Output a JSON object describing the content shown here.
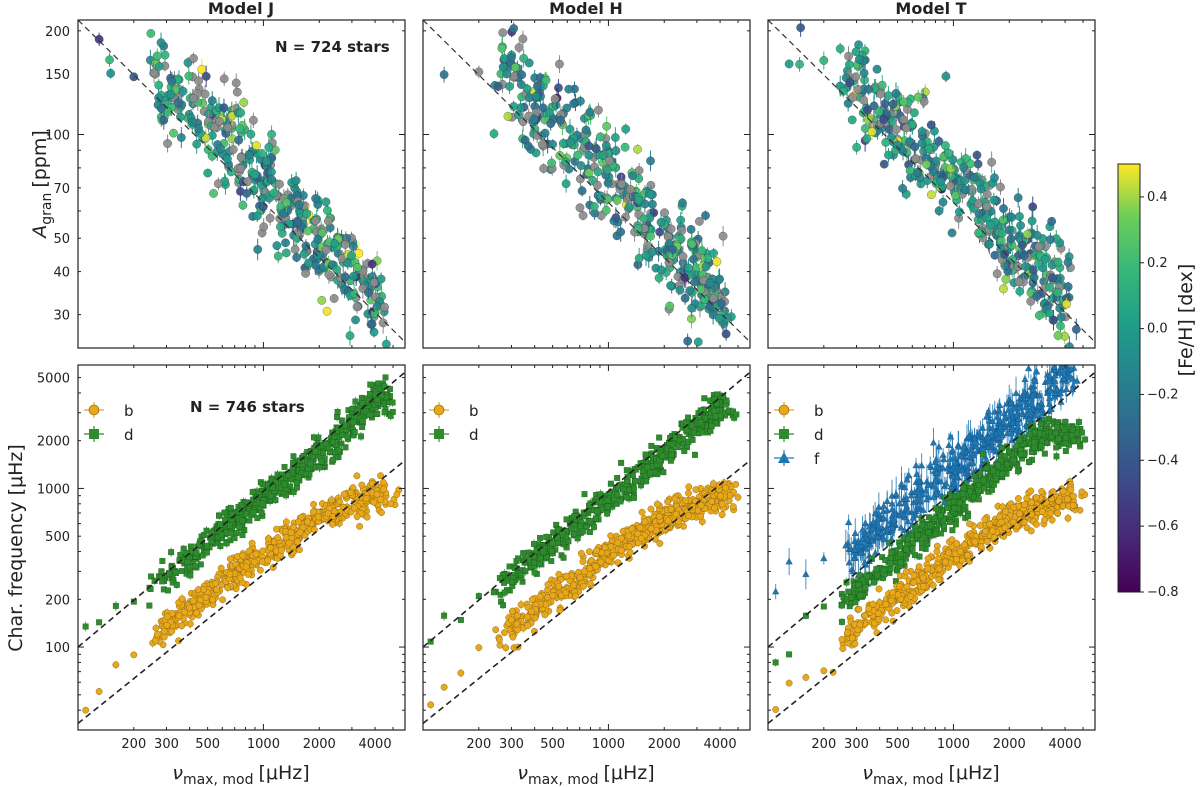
{
  "chart_data": [
    {
      "type": "scatter",
      "panel": "top-left",
      "title": "Model J",
      "xlabel": "",
      "ylabel": "A_gran [ppm]",
      "xscale": "log",
      "yscale": "log",
      "xlim": [
        100,
        5800
      ],
      "ylim": [
        24,
        215
      ],
      "yticks": [
        30,
        40,
        50,
        70,
        100,
        150,
        200
      ],
      "annotation": "N = 724 stars",
      "fit_line": {
        "x": [
          100,
          5800
        ],
        "y": [
          215,
          25
        ],
        "style": "dashed"
      },
      "colorbar": {
        "label": "[Fe/H] [dex]",
        "range": [
          -0.8,
          0.5
        ],
        "ticks": [
          -0.8,
          -0.6,
          -0.4,
          -0.2,
          0.0,
          0.2,
          0.4
        ],
        "colormap": "viridis",
        "missing_color": "#8c8c8c"
      },
      "series": [
        {
          "name": "stars",
          "note": "724 stars colored by [Fe/H]; grey = no metallicity",
          "points": [
            [
              130,
              178
            ],
            [
              148,
              170
            ],
            [
              200,
              146
            ],
            [
              260,
              150
            ],
            [
              300,
              140
            ],
            [
              350,
              128
            ],
            [
              400,
              118
            ],
            [
              500,
              108
            ],
            [
              600,
              98
            ],
            [
              700,
              92
            ],
            [
              800,
              85
            ],
            [
              900,
              80
            ],
            [
              1000,
              74
            ],
            [
              1200,
              68
            ],
            [
              1400,
              62
            ],
            [
              1600,
              57
            ],
            [
              1800,
              52
            ],
            [
              2000,
              48
            ],
            [
              2400,
              45
            ],
            [
              3000,
              40
            ],
            [
              3500,
              36
            ],
            [
              4000,
              33
            ],
            [
              4600,
              29
            ]
          ]
        }
      ]
    },
    {
      "type": "scatter",
      "panel": "top-middle",
      "title": "Model H",
      "xlabel": "",
      "ylabel": "",
      "xscale": "log",
      "yscale": "log",
      "xlim": [
        100,
        5800
      ],
      "ylim": [
        24,
        215
      ],
      "fit_line": {
        "x": [
          100,
          5800
        ],
        "y": [
          215,
          25
        ],
        "style": "dashed"
      },
      "series": [
        {
          "name": "stars",
          "points": [
            [
              130,
              178
            ],
            [
              200,
              160
            ],
            [
              300,
              140
            ],
            [
              500,
              108
            ],
            [
              800,
              85
            ],
            [
              1000,
              74
            ],
            [
              1400,
              62
            ],
            [
              2000,
              48
            ],
            [
              3000,
              40
            ],
            [
              4000,
              31
            ]
          ]
        }
      ]
    },
    {
      "type": "scatter",
      "panel": "top-right",
      "title": "Model T",
      "xlabel": "",
      "ylabel": "",
      "xscale": "log",
      "yscale": "log",
      "xlim": [
        100,
        5800
      ],
      "ylim": [
        24,
        215
      ],
      "fit_line": {
        "x": [
          100,
          5800
        ],
        "y": [
          215,
          25
        ],
        "style": "dashed"
      },
      "series": [
        {
          "name": "stars",
          "points": [
            [
              130,
              178
            ],
            [
              300,
              150
            ],
            [
              500,
              110
            ],
            [
              800,
              88
            ],
            [
              1000,
              76
            ],
            [
              1400,
              62
            ],
            [
              2000,
              50
            ],
            [
              3000,
              40
            ],
            [
              4000,
              32
            ]
          ]
        }
      ]
    },
    {
      "type": "scatter",
      "panel": "bottom-left",
      "xlabel": "ν_max, mod [μHz]",
      "ylabel": "Char. frequency [μHz]",
      "xscale": "log",
      "yscale": "log",
      "xlim": [
        100,
        5800
      ],
      "ylim": [
        30,
        6000
      ],
      "xticks": [
        200,
        300,
        500,
        1000,
        2000,
        4000
      ],
      "yticks": [
        100,
        200,
        500,
        1000,
        2000,
        5000
      ],
      "annotation": "N = 746 stars",
      "legend": [
        "b",
        "d"
      ],
      "series": [
        {
          "name": "b",
          "color": "#e8a81a",
          "marker": "circle",
          "points": [
            [
              110,
              45
            ],
            [
              160,
              75
            ],
            [
              250,
              115
            ],
            [
              300,
              135
            ],
            [
              400,
              175
            ],
            [
              500,
              215
            ],
            [
              700,
              290
            ],
            [
              1000,
              380
            ],
            [
              1500,
              520
            ],
            [
              2000,
              640
            ],
            [
              3000,
              820
            ],
            [
              4000,
              900
            ]
          ]
        },
        {
          "name": "d",
          "color": "#2e8b2e",
          "marker": "square",
          "points": [
            [
              110,
              130
            ],
            [
              150,
              140
            ],
            [
              250,
              250
            ],
            [
              300,
              285
            ],
            [
              400,
              370
            ],
            [
              500,
              460
            ],
            [
              700,
              620
            ],
            [
              1000,
              860
            ],
            [
              1500,
              1250
            ],
            [
              2000,
              1650
            ],
            [
              3000,
              2600
            ],
            [
              4000,
              3600
            ]
          ]
        }
      ],
      "fit_lines": [
        {
          "x": [
            100,
            5800
          ],
          "y": [
            100,
            5400
          ]
        },
        {
          "x": [
            100,
            5800
          ],
          "y": [
            33,
            1500
          ]
        }
      ]
    },
    {
      "type": "scatter",
      "panel": "bottom-middle",
      "xlabel": "ν_max, mod [μHz]",
      "ylabel": "",
      "xscale": "log",
      "yscale": "log",
      "xlim": [
        100,
        5800
      ],
      "ylim": [
        30,
        6000
      ],
      "xticks": [
        200,
        300,
        500,
        1000,
        2000,
        4000
      ],
      "legend": [
        "b",
        "d"
      ],
      "series": [
        {
          "name": "b",
          "color": "#e8a81a",
          "marker": "circle",
          "points": [
            [
              110,
              45
            ],
            [
              300,
              130
            ],
            [
              500,
              210
            ],
            [
              1000,
              380
            ],
            [
              2000,
              650
            ],
            [
              4000,
              900
            ]
          ]
        },
        {
          "name": "d",
          "color": "#2e8b2e",
          "marker": "square",
          "points": [
            [
              110,
              125
            ],
            [
              300,
              270
            ],
            [
              500,
              440
            ],
            [
              1000,
              840
            ],
            [
              2000,
              1650
            ],
            [
              4000,
              3300
            ]
          ]
        }
      ],
      "fit_lines": [
        {
          "x": [
            100,
            5800
          ],
          "y": [
            100,
            5400
          ]
        },
        {
          "x": [
            100,
            5800
          ],
          "y": [
            33,
            1500
          ]
        }
      ]
    },
    {
      "type": "scatter",
      "panel": "bottom-right",
      "xlabel": "ν_max, mod [μHz]",
      "ylabel": "",
      "xscale": "log",
      "yscale": "log",
      "xlim": [
        100,
        5800
      ],
      "ylim": [
        30,
        6000
      ],
      "xticks": [
        200,
        300,
        500,
        1000,
        2000,
        4000
      ],
      "legend": [
        "b",
        "d",
        "f"
      ],
      "series": [
        {
          "name": "b",
          "color": "#e8a81a",
          "marker": "circle",
          "points": [
            [
              110,
              45
            ],
            [
              300,
              130
            ],
            [
              500,
              210
            ],
            [
              1000,
              380
            ],
            [
              2000,
              650
            ],
            [
              4000,
              850
            ]
          ]
        },
        {
          "name": "d",
          "color": "#2e8b2e",
          "marker": "square",
          "points": [
            [
              110,
              95
            ],
            [
              300,
              220
            ],
            [
              500,
              380
            ],
            [
              1000,
              750
            ],
            [
              2000,
              1450
            ],
            [
              3000,
              2200
            ]
          ]
        },
        {
          "name": "f",
          "color": "#1f77b4",
          "marker": "triangle",
          "points": [
            [
              110,
              230
            ],
            [
              300,
              400
            ],
            [
              500,
              700
            ],
            [
              1000,
              1300
            ],
            [
              2000,
              2600
            ],
            [
              4000,
              5500
            ]
          ]
        }
      ],
      "fit_lines": [
        {
          "x": [
            100,
            5800
          ],
          "y": [
            100,
            5400
          ]
        },
        {
          "x": [
            100,
            5800
          ],
          "y": [
            33,
            1500
          ]
        }
      ]
    }
  ],
  "labels": {
    "titles": [
      "Model J",
      "Model H",
      "Model T"
    ],
    "ylabel_top": "A",
    "ylabel_top_sub": "gran",
    "ylabel_top_unit": "[ppm]",
    "ylabel_bottom": "Char. frequency [μHz]",
    "xlabel_main": "ν",
    "xlabel_sub": "max, mod",
    "xlabel_unit": "[μHz]",
    "annotation_top": "N = 724 stars",
    "annotation_bottom": "N = 746 stars",
    "colorbar_label": "[Fe/H] [dex]",
    "legend_b": "b",
    "legend_d": "d",
    "legend_f": "f"
  },
  "colors": {
    "b": "#e8a81a",
    "d": "#2e8b2e",
    "f": "#1f77b4",
    "missing": "#8c8c8c"
  }
}
